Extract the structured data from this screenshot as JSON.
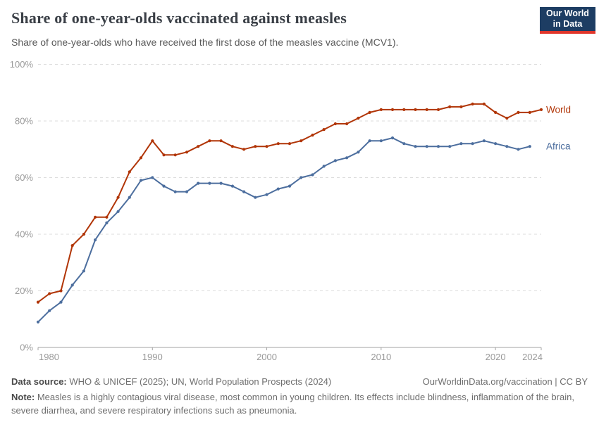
{
  "header": {
    "title": "Share of one-year-olds vaccinated against measles",
    "subtitle": "Share of one-year-olds who have received the first dose of the measles vaccine (MCV1).",
    "logo": {
      "line1": "Our World",
      "line2": "in Data",
      "bg_color": "#1d3d63",
      "bar_color": "#e0362b"
    }
  },
  "chart_data": {
    "type": "line",
    "title": "Share of one-year-olds vaccinated against measles",
    "xlabel": "",
    "ylabel": "",
    "xlim": [
      1980,
      2024
    ],
    "ylim": [
      0,
      100
    ],
    "x_ticks": [
      1980,
      1990,
      2000,
      2010,
      2020,
      2024
    ],
    "y_ticks": [
      0,
      20,
      40,
      60,
      80,
      100
    ],
    "y_tick_suffix": "%",
    "grid": "horizontal-dashed",
    "legend_position": "line-end-labels",
    "grid_color": "#dddddd",
    "axis_color": "#a3a3a3",
    "tick_label_color": "#9a9a9a",
    "series": [
      {
        "name": "World",
        "color": "#b13507",
        "start_year": 1980,
        "values": [
          16,
          19,
          20,
          36,
          40,
          46,
          46,
          53,
          62,
          67,
          73,
          68,
          68,
          69,
          71,
          73,
          73,
          71,
          70,
          71,
          71,
          72,
          72,
          73,
          75,
          77,
          79,
          79,
          81,
          83,
          84,
          84,
          84,
          84,
          84,
          84,
          85,
          85,
          86,
          86,
          83,
          81,
          83,
          83,
          84
        ]
      },
      {
        "name": "Africa",
        "color": "#4c6e9e",
        "start_year": 1980,
        "values": [
          9,
          13,
          16,
          22,
          27,
          38,
          44,
          48,
          53,
          59,
          60,
          57,
          55,
          55,
          58,
          58,
          58,
          57,
          55,
          53,
          54,
          56,
          57,
          60,
          61,
          64,
          66,
          67,
          69,
          73,
          73,
          74,
          72,
          71,
          71,
          71,
          71,
          72,
          72,
          73,
          72,
          71,
          70,
          71
        ]
      }
    ]
  },
  "footer": {
    "datasource_label": "Data source:",
    "datasource": "WHO & UNICEF (2025); UN, World Population Prospects (2024)",
    "link": "OurWorldinData.org/vaccination | CC BY",
    "note_label": "Note:",
    "note": "Measles is a highly contagious viral disease, most common in young children. Its effects include blindness, inflammation of the brain, severe diarrhea, and severe respiratory infections such as pneumonia."
  }
}
